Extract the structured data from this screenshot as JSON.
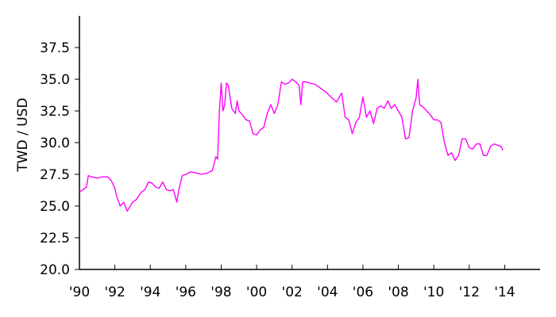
{
  "chart_data": {
    "type": "line",
    "title": "",
    "xlabel": "",
    "ylabel": "TWD / USD",
    "xlim": [
      1990,
      2016
    ],
    "ylim": [
      20.0,
      40.0
    ],
    "grid": false,
    "legend": "none",
    "x_ticks": [
      {
        "value": 1990,
        "label": "'90"
      },
      {
        "value": 1992,
        "label": "'92"
      },
      {
        "value": 1994,
        "label": "'94"
      },
      {
        "value": 1996,
        "label": "'96"
      },
      {
        "value": 1998,
        "label": "'98"
      },
      {
        "value": 2000,
        "label": "'00"
      },
      {
        "value": 2002,
        "label": "'02"
      },
      {
        "value": 2004,
        "label": "'04"
      },
      {
        "value": 2006,
        "label": "'06"
      },
      {
        "value": 2008,
        "label": "'08"
      },
      {
        "value": 2010,
        "label": "'10"
      },
      {
        "value": 2012,
        "label": "'12"
      },
      {
        "value": 2014,
        "label": "'14"
      }
    ],
    "y_ticks": [
      {
        "value": 20.0,
        "label": "20.0"
      },
      {
        "value": 22.5,
        "label": "22.5"
      },
      {
        "value": 25.0,
        "label": "25.0"
      },
      {
        "value": 27.5,
        "label": "27.5"
      },
      {
        "value": 30.0,
        "label": "30.0"
      },
      {
        "value": 32.5,
        "label": "32.5"
      },
      {
        "value": 35.0,
        "label": "35.0"
      },
      {
        "value": 37.5,
        "label": "37.5"
      }
    ],
    "series": [
      {
        "color": "#ff00ff",
        "x": [
          1990.0,
          1990.2,
          1990.4,
          1990.5,
          1990.7,
          1991.0,
          1991.3,
          1991.6,
          1991.8,
          1992.0,
          1992.1,
          1992.3,
          1992.5,
          1992.7,
          1993.0,
          1993.2,
          1993.5,
          1993.7,
          1993.9,
          1994.1,
          1994.3,
          1994.5,
          1994.7,
          1994.9,
          1995.1,
          1995.3,
          1995.5,
          1995.6,
          1995.8,
          1996.0,
          1996.3,
          1996.6,
          1996.9,
          1997.2,
          1997.5,
          1997.7,
          1997.8,
          1997.9,
          1998.0,
          1998.1,
          1998.2,
          1998.3,
          1998.4,
          1998.6,
          1998.8,
          1998.9,
          1999.0,
          1999.2,
          1999.4,
          1999.6,
          1999.8,
          2000.0,
          2000.2,
          2000.4,
          2000.6,
          2000.8,
          2001.0,
          2001.2,
          2001.4,
          2001.6,
          2001.8,
          2002.0,
          2002.2,
          2002.4,
          2002.5,
          2002.6,
          2002.8,
          2003.0,
          2003.3,
          2003.6,
          2003.9,
          2004.2,
          2004.5,
          2004.8,
          2005.0,
          2005.2,
          2005.4,
          2005.6,
          2005.8,
          2006.0,
          2006.2,
          2006.4,
          2006.6,
          2006.8,
          2007.0,
          2007.2,
          2007.4,
          2007.6,
          2007.8,
          2008.0,
          2008.2,
          2008.4,
          2008.6,
          2008.8,
          2009.0,
          2009.1,
          2009.2,
          2009.4,
          2009.6,
          2009.8,
          2010.0,
          2010.2,
          2010.4,
          2010.6,
          2010.8,
          2011.0,
          2011.2,
          2011.4,
          2011.6,
          2011.8,
          2012.0,
          2012.2,
          2012.4,
          2012.6,
          2012.8,
          2013.0,
          2013.2,
          2013.4,
          2013.6,
          2013.8,
          2013.9
        ],
        "y": [
          26.1,
          26.3,
          26.5,
          27.4,
          27.3,
          27.2,
          27.3,
          27.3,
          27.0,
          26.4,
          25.8,
          25.0,
          25.3,
          24.6,
          25.3,
          25.5,
          26.1,
          26.3,
          26.9,
          26.8,
          26.5,
          26.4,
          26.9,
          26.3,
          26.2,
          26.3,
          25.3,
          26.2,
          27.4,
          27.5,
          27.7,
          27.6,
          27.5,
          27.6,
          27.8,
          28.9,
          28.7,
          32.5,
          34.7,
          32.5,
          33.0,
          34.7,
          34.5,
          32.7,
          32.3,
          33.3,
          32.5,
          32.2,
          31.8,
          31.7,
          30.7,
          30.6,
          31.0,
          31.2,
          32.3,
          33.0,
          32.3,
          33.0,
          34.8,
          34.6,
          34.7,
          35.0,
          34.8,
          34.5,
          33.0,
          34.8,
          34.8,
          34.7,
          34.6,
          34.3,
          34.0,
          33.6,
          33.2,
          33.9,
          32.0,
          31.8,
          30.7,
          31.6,
          32.0,
          33.6,
          32.0,
          32.5,
          31.5,
          32.7,
          32.9,
          32.7,
          33.3,
          32.7,
          33.0,
          32.5,
          32.0,
          30.3,
          30.4,
          32.5,
          33.5,
          35.0,
          33.0,
          32.8,
          32.5,
          32.2,
          31.8,
          31.8,
          31.6,
          30.0,
          29.0,
          29.2,
          28.6,
          29.0,
          30.3,
          30.3,
          29.6,
          29.5,
          29.9,
          29.9,
          29.0,
          29.0,
          29.7,
          29.9,
          29.8,
          29.7,
          29.4
        ]
      }
    ]
  }
}
